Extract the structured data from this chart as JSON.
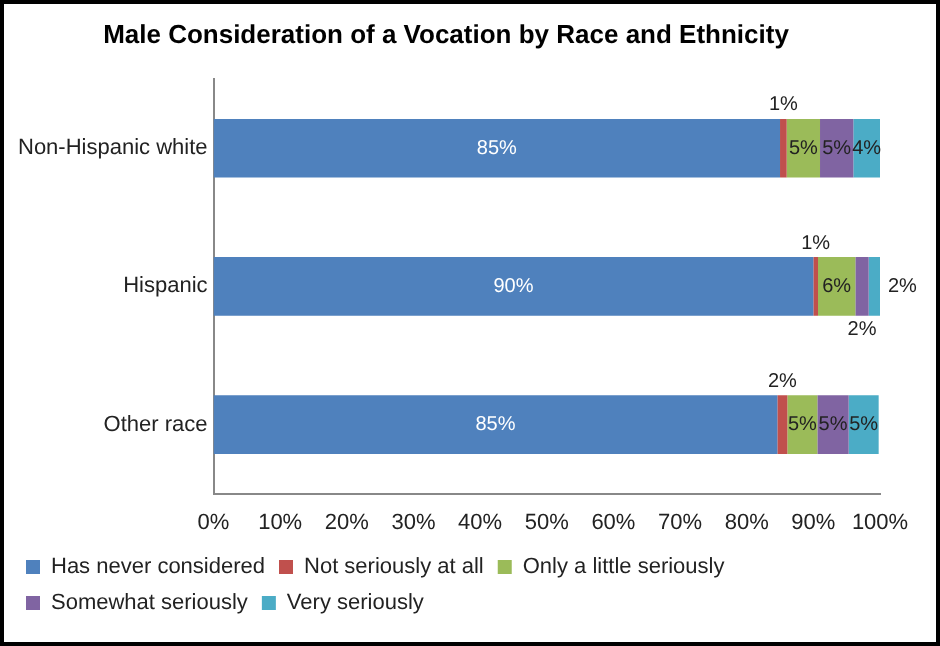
{
  "chart_data": {
    "type": "bar",
    "orientation": "horizontal",
    "stacked": true,
    "title": "Male Consideration of a Vocation by Race and Ethnicity",
    "categories": [
      "Non-Hispanic white",
      "Hispanic",
      "Other race"
    ],
    "series": [
      {
        "name": "Has never considered",
        "color": "#4f81bd",
        "values": [
          85,
          90,
          84.6
        ],
        "value_labels": [
          "85%",
          "90%",
          "85%"
        ]
      },
      {
        "name": "Not seriously at all",
        "color": "#c0504d",
        "values": [
          1,
          0.7,
          1.5
        ],
        "value_labels": [
          "1%",
          "1%",
          "2%"
        ]
      },
      {
        "name": "Only a little seriously",
        "color": "#9bbb59",
        "values": [
          5,
          5.6,
          4.5
        ],
        "value_labels": [
          "5%",
          "6%",
          "5%"
        ]
      },
      {
        "name": "Somewhat seriously",
        "color": "#8064a2",
        "values": [
          5,
          2,
          4.7
        ],
        "value_labels": [
          "5%",
          "2%",
          "5%"
        ]
      },
      {
        "name": "Very seriously",
        "color": "#4bacc6",
        "values": [
          4,
          1.7,
          4.5
        ],
        "value_labels": [
          "4%",
          "2%",
          "5%"
        ]
      }
    ],
    "xlim": [
      0,
      100
    ],
    "xticks": [
      {
        "value": 0,
        "label": "0%"
      },
      {
        "value": 10,
        "label": "10%"
      },
      {
        "value": 20,
        "label": "20%"
      },
      {
        "value": 30,
        "label": "30%"
      },
      {
        "value": 40,
        "label": "40%"
      },
      {
        "value": 50,
        "label": "50%"
      },
      {
        "value": 60,
        "label": "60%"
      },
      {
        "value": 70,
        "label": "70%"
      },
      {
        "value": 80,
        "label": "80%"
      },
      {
        "value": 90,
        "label": "90%"
      },
      {
        "value": 100,
        "label": "100%"
      }
    ],
    "grid": false,
    "legend": "bottom"
  }
}
